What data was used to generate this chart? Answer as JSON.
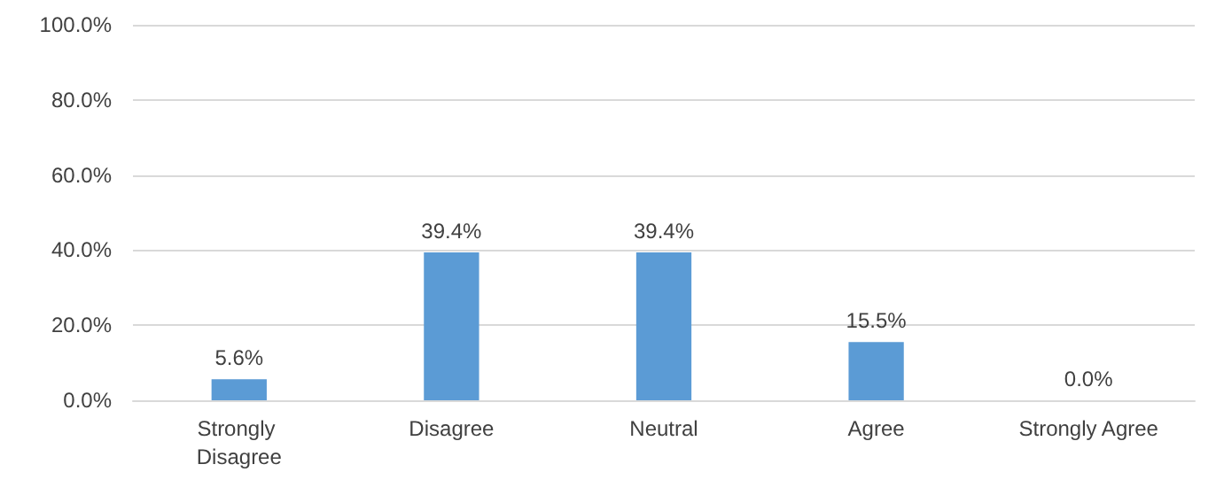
{
  "chart_data": {
    "type": "bar",
    "categories": [
      "Strongly Disagree",
      "Disagree",
      "Neutral",
      "Agree",
      "Strongly Agree"
    ],
    "values": [
      5.6,
      39.4,
      39.4,
      15.5,
      0.0
    ],
    "value_labels": [
      "5.6%",
      "39.4%",
      "39.4%",
      "15.5%",
      "0.0%"
    ],
    "color": "#5b9bd5",
    "ylim": [
      0,
      100
    ],
    "yticks": [
      {
        "value": 0,
        "label": "0.0%"
      },
      {
        "value": 20,
        "label": "20.0%"
      },
      {
        "value": 40,
        "label": "40.0%"
      },
      {
        "value": 60,
        "label": "60.0%"
      },
      {
        "value": 80,
        "label": "80.0%"
      },
      {
        "value": 100,
        "label": "100.0%"
      }
    ],
    "grid": "y"
  }
}
